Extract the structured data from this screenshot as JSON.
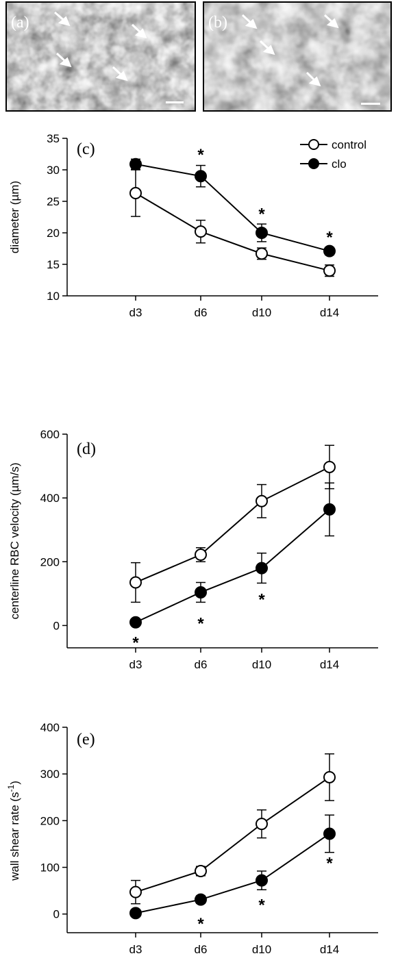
{
  "images": [
    {
      "label": "(a)"
    },
    {
      "label": "(b)"
    }
  ],
  "chart_data": [
    {
      "type": "line",
      "panel_label": "(c)",
      "title": "",
      "xlabel": "",
      "ylabel": "diameter (µm)",
      "categories": [
        "d3",
        "d6",
        "d10",
        "d14"
      ],
      "ylim": [
        10,
        35
      ],
      "yticks": [
        10,
        15,
        20,
        25,
        30,
        35
      ],
      "grid": false,
      "legend_position": "top-right",
      "series": [
        {
          "name": "control",
          "marker": "open-circle",
          "values": [
            26.3,
            20.2,
            16.7,
            14.0
          ],
          "errors": [
            3.7,
            1.8,
            0.9,
            0.9
          ]
        },
        {
          "name": "clo",
          "marker": "filled-circle",
          "values": [
            30.9,
            29.0,
            20.0,
            17.1
          ],
          "errors": [
            0.8,
            1.7,
            1.4,
            0.6
          ]
        }
      ],
      "annotations": [
        {
          "text": "*",
          "category": "d6",
          "y": 32.6
        },
        {
          "text": "*",
          "category": "d10",
          "y": 23.2
        },
        {
          "text": "*",
          "category": "d14",
          "y": 19.5
        }
      ]
    },
    {
      "type": "line",
      "panel_label": "(d)",
      "title": "",
      "xlabel": "",
      "ylabel": "centerline RBC velocity (µm/s)",
      "categories": [
        "d3",
        "d6",
        "d10",
        "d14"
      ],
      "ylim": [
        -70,
        600
      ],
      "yticks": [
        0,
        200,
        400,
        600
      ],
      "grid": false,
      "series": [
        {
          "name": "control",
          "marker": "open-circle",
          "values": [
            135,
            222,
            390,
            497
          ],
          "errors": [
            62,
            22,
            52,
            68
          ]
        },
        {
          "name": "clo",
          "marker": "filled-circle",
          "values": [
            10,
            104,
            180,
            364
          ],
          "errors": [
            5,
            31,
            47,
            83
          ]
        }
      ],
      "annotations": [
        {
          "text": "*",
          "category": "d3",
          "y": -50
        },
        {
          "text": "*",
          "category": "d6",
          "y": 10
        },
        {
          "text": "*",
          "category": "d10",
          "y": 86
        }
      ]
    },
    {
      "type": "line",
      "panel_label": "(e)",
      "title": "",
      "xlabel": "",
      "ylabel": "wall shear rate (s-1)",
      "categories": [
        "d3",
        "d6",
        "d10",
        "d14"
      ],
      "ylim": [
        -40,
        400
      ],
      "yticks": [
        0,
        100,
        200,
        300,
        400
      ],
      "grid": false,
      "series": [
        {
          "name": "control",
          "marker": "open-circle",
          "values": [
            47,
            92,
            193,
            293
          ],
          "errors": [
            25,
            10,
            30,
            50
          ]
        },
        {
          "name": "clo",
          "marker": "filled-circle",
          "values": [
            2,
            31,
            72,
            172
          ],
          "errors": [
            3,
            8,
            20,
            40
          ]
        }
      ],
      "annotations": [
        {
          "text": "*",
          "category": "d6",
          "y": -18
        },
        {
          "text": "*",
          "category": "d10",
          "y": 22
        },
        {
          "text": "*",
          "category": "d14",
          "y": 112
        }
      ]
    }
  ]
}
